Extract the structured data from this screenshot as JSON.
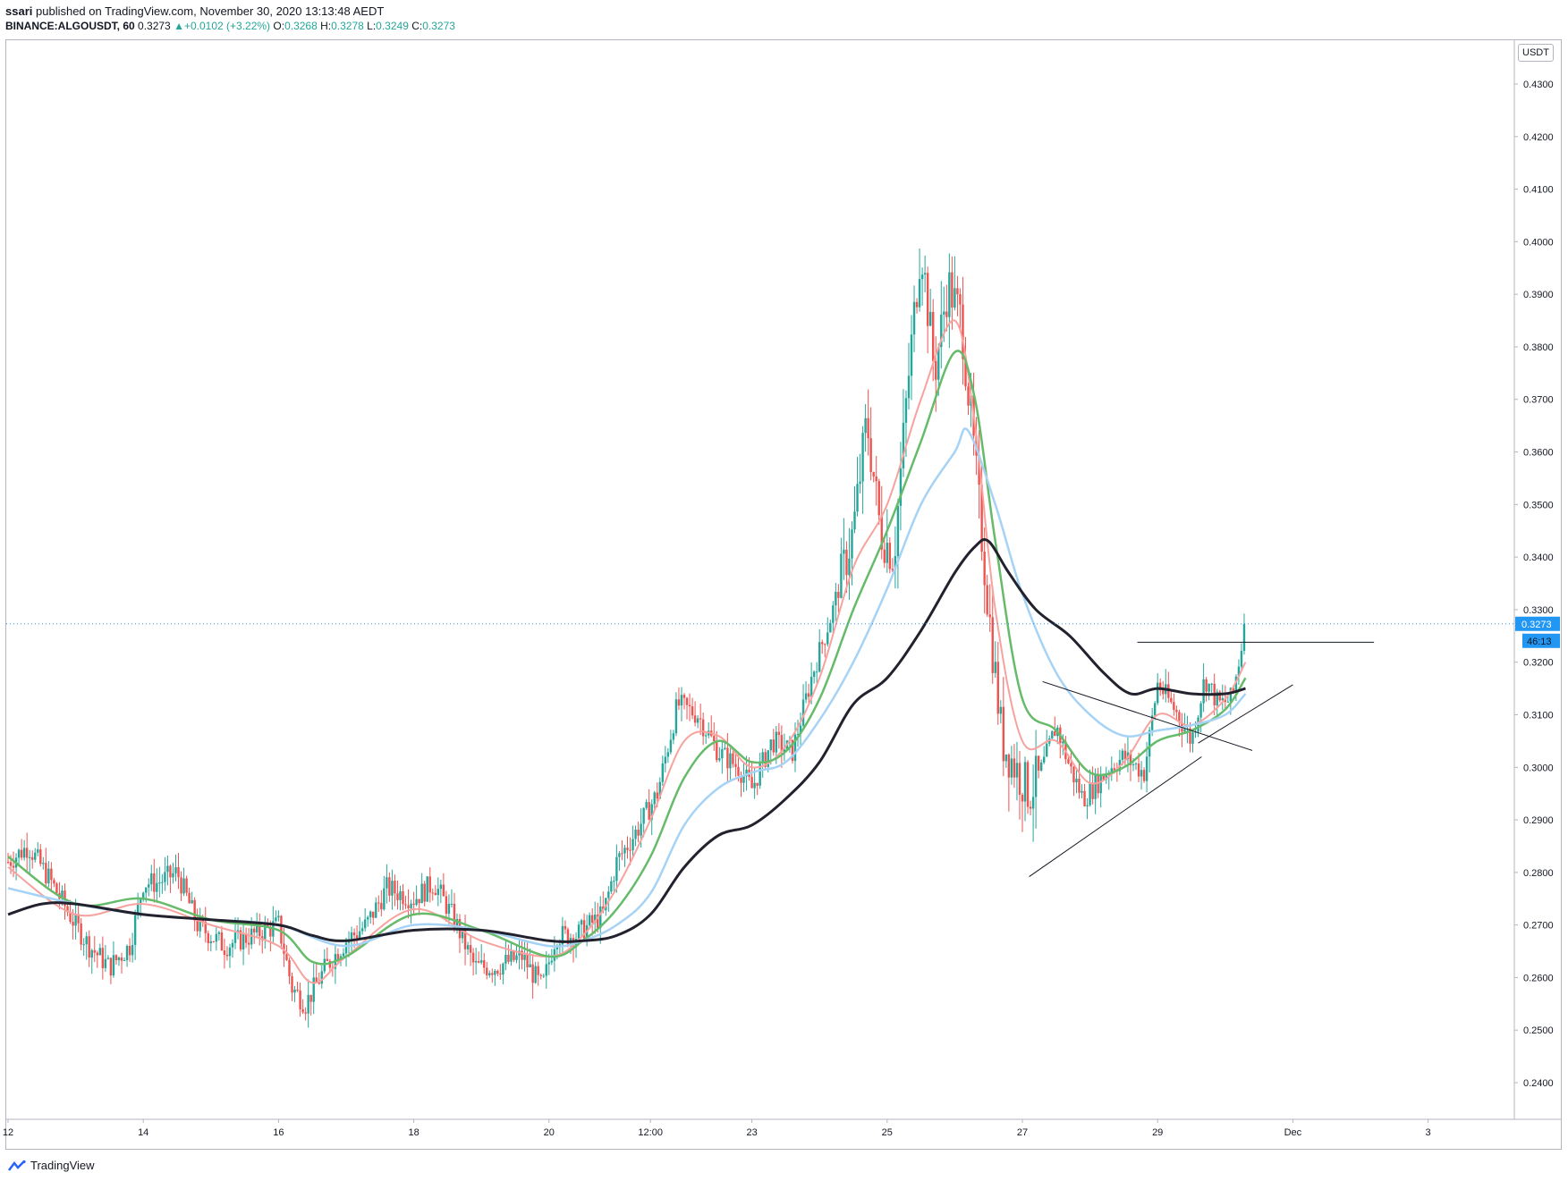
{
  "header": {
    "publisher": "ssari",
    "published_text": "published on TradingView.com, November 30, 2020 13:13:48 AEDT",
    "symbol": "BINANCE:ALGOUSDT, 60",
    "last": "0.3273",
    "change_arrow": "▲",
    "change": "+0.0102 (+3.22%)",
    "o_label": "O:",
    "o_val": "0.3268",
    "h_label": "H:",
    "h_val": "0.3278",
    "l_label": "L:",
    "l_val": "0.3249",
    "c_label": "C:",
    "c_val": "0.3273"
  },
  "currency_badge": "USDT",
  "footer": {
    "brand": "TradingView",
    "logo_icon": "tradingview-logo-icon"
  },
  "colors": {
    "up": "#26a69a",
    "down": "#ef5350",
    "ma_fast": "#f7a29e",
    "ma_mid": "#66bb6a",
    "ma_slow": "#a6d3f5",
    "ma_long": "#22222e",
    "price_line": "#2196f3"
  },
  "chart_data": {
    "type": "candlestick",
    "price_axis": [
      "0.2400",
      "0.2500",
      "0.2600",
      "0.2700",
      "0.2800",
      "0.2900",
      "0.3000",
      "0.3100",
      "0.3200",
      "0.3300",
      "0.3400",
      "0.3500",
      "0.3600",
      "0.3700",
      "0.3800",
      "0.3900",
      "0.4000",
      "0.4100",
      "0.4200",
      "0.4300"
    ],
    "ylim": [
      0.2345,
      0.4424
    ],
    "time_axis": [
      {
        "label": "12",
        "x": 0
      },
      {
        "label": "14",
        "x": 2
      },
      {
        "label": "16",
        "x": 4
      },
      {
        "label": "18",
        "x": 6
      },
      {
        "label": "20",
        "x": 8
      },
      {
        "label": "12:00",
        "x": 9.5
      },
      {
        "label": "23",
        "x": 11
      },
      {
        "label": "25",
        "x": 13
      },
      {
        "label": "27",
        "x": 15
      },
      {
        "label": "29",
        "x": 17
      },
      {
        "label": "Dec",
        "x": 19
      },
      {
        "label": "3",
        "x": 21
      }
    ],
    "last_price": "0.3273",
    "countdown": "46:13",
    "price_path": [
      [
        0,
        0.282
      ],
      [
        0.3,
        0.285
      ],
      [
        0.6,
        0.279
      ],
      [
        1.0,
        0.27
      ],
      [
        1.2,
        0.266
      ],
      [
        1.5,
        0.262
      ],
      [
        1.8,
        0.266
      ],
      [
        2.0,
        0.278
      ],
      [
        2.2,
        0.278
      ],
      [
        2.5,
        0.28
      ],
      [
        2.8,
        0.27
      ],
      [
        3.2,
        0.266
      ],
      [
        3.6,
        0.268
      ],
      [
        4.0,
        0.27
      ],
      [
        4.2,
        0.258
      ],
      [
        4.4,
        0.255
      ],
      [
        4.7,
        0.262
      ],
      [
        5.0,
        0.267
      ],
      [
        5.3,
        0.27
      ],
      [
        5.6,
        0.277
      ],
      [
        6.0,
        0.275
      ],
      [
        6.3,
        0.278
      ],
      [
        6.6,
        0.271
      ],
      [
        6.9,
        0.262
      ],
      [
        7.2,
        0.262
      ],
      [
        7.6,
        0.264
      ],
      [
        7.9,
        0.258
      ],
      [
        8.1,
        0.268
      ],
      [
        8.4,
        0.268
      ],
      [
        8.8,
        0.272
      ],
      [
        9.0,
        0.282
      ],
      [
        9.3,
        0.288
      ],
      [
        9.6,
        0.295
      ],
      [
        9.9,
        0.312
      ],
      [
        10.2,
        0.31
      ],
      [
        10.5,
        0.303
      ],
      [
        10.8,
        0.3
      ],
      [
        11.0,
        0.296
      ],
      [
        11.3,
        0.305
      ],
      [
        11.6,
        0.303
      ],
      [
        11.9,
        0.318
      ],
      [
        12.2,
        0.33
      ],
      [
        12.5,
        0.345
      ],
      [
        12.7,
        0.366
      ],
      [
        12.9,
        0.345
      ],
      [
        13.1,
        0.34
      ],
      [
        13.3,
        0.372
      ],
      [
        13.5,
        0.4
      ],
      [
        13.7,
        0.375
      ],
      [
        13.9,
        0.392
      ],
      [
        14.1,
        0.385
      ],
      [
        14.3,
        0.358
      ],
      [
        14.5,
        0.33
      ],
      [
        14.7,
        0.305
      ],
      [
        14.9,
        0.3
      ],
      [
        15.1,
        0.295
      ],
      [
        15.3,
        0.3
      ],
      [
        15.5,
        0.308
      ],
      [
        15.7,
        0.3
      ],
      [
        15.9,
        0.294
      ],
      [
        16.1,
        0.297
      ],
      [
        16.3,
        0.3
      ],
      [
        16.5,
        0.302
      ],
      [
        16.8,
        0.299
      ],
      [
        17.0,
        0.316
      ],
      [
        17.3,
        0.31
      ],
      [
        17.5,
        0.305
      ],
      [
        17.7,
        0.317
      ],
      [
        17.9,
        0.312
      ],
      [
        18.1,
        0.313
      ],
      [
        18.3,
        0.3273
      ]
    ],
    "moving_averages": [
      {
        "name": "",
        "color": "#f7a29e",
        "points": [
          [
            0,
            0.281
          ],
          [
            1,
            0.272
          ],
          [
            2,
            0.274
          ],
          [
            3,
            0.27
          ],
          [
            4,
            0.266
          ],
          [
            4.5,
            0.259
          ],
          [
            5,
            0.264
          ],
          [
            6,
            0.273
          ],
          [
            7,
            0.267
          ],
          [
            8,
            0.264
          ],
          [
            8.5,
            0.268
          ],
          [
            9,
            0.277
          ],
          [
            9.5,
            0.29
          ],
          [
            10,
            0.305
          ],
          [
            10.5,
            0.306
          ],
          [
            11,
            0.3
          ],
          [
            11.5,
            0.304
          ],
          [
            12,
            0.317
          ],
          [
            12.5,
            0.338
          ],
          [
            13,
            0.35
          ],
          [
            13.5,
            0.37
          ],
          [
            14,
            0.385
          ],
          [
            14.3,
            0.365
          ],
          [
            14.6,
            0.33
          ],
          [
            15,
            0.305
          ],
          [
            15.5,
            0.305
          ],
          [
            16,
            0.297
          ],
          [
            16.5,
            0.301
          ],
          [
            17,
            0.31
          ],
          [
            17.5,
            0.308
          ],
          [
            18,
            0.313
          ],
          [
            18.3,
            0.32
          ]
        ]
      },
      {
        "name": "",
        "color": "#66bb6a",
        "points": [
          [
            0,
            0.283
          ],
          [
            1,
            0.274
          ],
          [
            2,
            0.275
          ],
          [
            3,
            0.271
          ],
          [
            4,
            0.269
          ],
          [
            4.5,
            0.263
          ],
          [
            5,
            0.264
          ],
          [
            6,
            0.272
          ],
          [
            7,
            0.269
          ],
          [
            8,
            0.264
          ],
          [
            8.5,
            0.267
          ],
          [
            9,
            0.273
          ],
          [
            9.5,
            0.283
          ],
          [
            10,
            0.298
          ],
          [
            10.5,
            0.305
          ],
          [
            11,
            0.301
          ],
          [
            11.5,
            0.303
          ],
          [
            12,
            0.313
          ],
          [
            12.5,
            0.33
          ],
          [
            13,
            0.345
          ],
          [
            13.5,
            0.362
          ],
          [
            14,
            0.379
          ],
          [
            14.3,
            0.37
          ],
          [
            14.6,
            0.343
          ],
          [
            15,
            0.313
          ],
          [
            15.5,
            0.307
          ],
          [
            16,
            0.299
          ],
          [
            16.5,
            0.3
          ],
          [
            17,
            0.305
          ],
          [
            17.5,
            0.307
          ],
          [
            18,
            0.311
          ],
          [
            18.3,
            0.317
          ]
        ]
      },
      {
        "name": "",
        "color": "#a6d3f5",
        "points": [
          [
            0,
            0.277
          ],
          [
            1,
            0.274
          ],
          [
            2,
            0.272
          ],
          [
            3,
            0.271
          ],
          [
            4,
            0.27
          ],
          [
            5,
            0.266
          ],
          [
            6,
            0.27
          ],
          [
            7,
            0.269
          ],
          [
            8,
            0.266
          ],
          [
            8.5,
            0.267
          ],
          [
            9,
            0.27
          ],
          [
            9.5,
            0.276
          ],
          [
            10,
            0.289
          ],
          [
            10.5,
            0.296
          ],
          [
            11,
            0.299
          ],
          [
            11.5,
            0.301
          ],
          [
            12,
            0.309
          ],
          [
            12.5,
            0.32
          ],
          [
            13,
            0.334
          ],
          [
            13.5,
            0.35
          ],
          [
            14,
            0.36
          ],
          [
            14.2,
            0.364
          ],
          [
            14.6,
            0.35
          ],
          [
            15,
            0.333
          ],
          [
            15.5,
            0.318
          ],
          [
            16,
            0.31
          ],
          [
            16.5,
            0.306
          ],
          [
            17,
            0.307
          ],
          [
            17.5,
            0.308
          ],
          [
            18,
            0.31
          ],
          [
            18.3,
            0.314
          ]
        ]
      },
      {
        "name": "",
        "color": "#22222e",
        "points": [
          [
            0,
            0.272
          ],
          [
            0.5,
            0.274
          ],
          [
            1,
            0.274
          ],
          [
            2,
            0.272
          ],
          [
            3,
            0.271
          ],
          [
            4,
            0.27
          ],
          [
            4.5,
            0.268
          ],
          [
            5,
            0.267
          ],
          [
            6,
            0.269
          ],
          [
            7,
            0.269
          ],
          [
            8,
            0.267
          ],
          [
            8.5,
            0.267
          ],
          [
            9,
            0.268
          ],
          [
            9.5,
            0.272
          ],
          [
            10,
            0.281
          ],
          [
            10.5,
            0.287
          ],
          [
            11,
            0.289
          ],
          [
            11.5,
            0.294
          ],
          [
            12,
            0.301
          ],
          [
            12.5,
            0.312
          ],
          [
            13,
            0.317
          ],
          [
            13.5,
            0.326
          ],
          [
            14,
            0.337
          ],
          [
            14.3,
            0.342
          ],
          [
            14.5,
            0.343
          ],
          [
            14.8,
            0.337
          ],
          [
            15.2,
            0.33
          ],
          [
            15.7,
            0.325
          ],
          [
            16.2,
            0.318
          ],
          [
            16.6,
            0.314
          ],
          [
            17,
            0.315
          ],
          [
            17.5,
            0.314
          ],
          [
            18,
            0.314
          ],
          [
            18.3,
            0.315
          ]
        ]
      }
    ],
    "drawings": [
      {
        "name": "resistance-line",
        "points": [
          [
            16.7,
            0.3238
          ],
          [
            20.2,
            0.3238
          ]
        ]
      },
      {
        "name": "ascending-support-line",
        "points": [
          [
            15.1,
            0.2792
          ],
          [
            17.65,
            0.302
          ]
        ]
      },
      {
        "name": "descending-trend-line",
        "points": [
          [
            15.3,
            0.3163
          ],
          [
            18.4,
            0.3032
          ]
        ]
      },
      {
        "name": "rising-wedge-line",
        "points": [
          [
            17.6,
            0.3046
          ],
          [
            19.0,
            0.3157
          ]
        ]
      }
    ]
  }
}
